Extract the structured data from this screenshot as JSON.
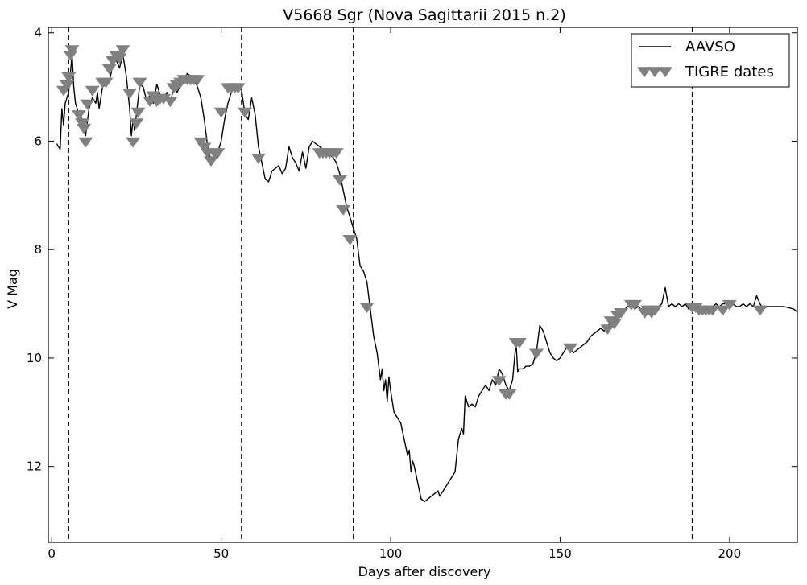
{
  "chart_data": {
    "type": "line",
    "title": "V5668 Sgr (Nova Sagittarii 2015 n.2)",
    "xlabel": "Days after discovery",
    "ylabel": "V Mag",
    "xlim": [
      -1,
      220
    ],
    "ylim": [
      13.4,
      3.9
    ],
    "y_inverted": true,
    "x_ticks": [
      0,
      50,
      100,
      150,
      200
    ],
    "y_ticks": [
      4,
      6,
      8,
      10,
      12
    ],
    "grid": false,
    "legend_position": "top-right",
    "vertical_dashed_lines_x": [
      5,
      56,
      89,
      189
    ],
    "series": [
      {
        "name": "AAVSO",
        "kind": "line",
        "color": "#000000",
        "points": [
          [
            1.5,
            6.05
          ],
          [
            2.5,
            6.15
          ],
          [
            3,
            5.4
          ],
          [
            3.5,
            5.7
          ],
          [
            4,
            5.3
          ],
          [
            5,
            5.1
          ],
          [
            6,
            4.4
          ],
          [
            6.5,
            5.0
          ],
          [
            7,
            5.3
          ],
          [
            8,
            5.5
          ],
          [
            9,
            5.6
          ],
          [
            10,
            5.9
          ],
          [
            11,
            5.4
          ],
          [
            12,
            5.2
          ],
          [
            13,
            5.3
          ],
          [
            13.5,
            5.1
          ],
          [
            14,
            5.4
          ],
          [
            15,
            5.0
          ],
          [
            16,
            4.95
          ],
          [
            17,
            4.9
          ],
          [
            18,
            4.6
          ],
          [
            19,
            4.5
          ],
          [
            20,
            4.65
          ],
          [
            21,
            4.4
          ],
          [
            22,
            4.8
          ],
          [
            23,
            5.4
          ],
          [
            23.5,
            5.9
          ],
          [
            24,
            5.6
          ],
          [
            24.5,
            5.8
          ],
          [
            25,
            5.5
          ],
          [
            26,
            4.95
          ],
          [
            27,
            5.0
          ],
          [
            28,
            5.25
          ],
          [
            29,
            5.15
          ],
          [
            30,
            5.3
          ],
          [
            31,
            4.95
          ],
          [
            32,
            5.15
          ],
          [
            33,
            5.2
          ],
          [
            34,
            5.1
          ],
          [
            35,
            5.3
          ],
          [
            36,
            5.0
          ],
          [
            37,
            5.1
          ],
          [
            38,
            4.95
          ],
          [
            39,
            4.9
          ],
          [
            40,
            4.75
          ],
          [
            41,
            4.8
          ],
          [
            42,
            4.85
          ],
          [
            43,
            5.0
          ],
          [
            44,
            5.2
          ],
          [
            45,
            5.6
          ],
          [
            46,
            6.1
          ],
          [
            47,
            6.35
          ],
          [
            48,
            6.3
          ],
          [
            49,
            6.2
          ],
          [
            50,
            6.0
          ],
          [
            51,
            5.6
          ],
          [
            52,
            5.3
          ],
          [
            53,
            5.1
          ],
          [
            54,
            5.0
          ],
          [
            55,
            4.95
          ],
          [
            56,
            5.05
          ],
          [
            57,
            5.5
          ],
          [
            58,
            5.6
          ],
          [
            59,
            5.2
          ],
          [
            60,
            5.5
          ],
          [
            61,
            6.1
          ],
          [
            62,
            6.4
          ],
          [
            63,
            6.7
          ],
          [
            64,
            6.75
          ],
          [
            65,
            6.55
          ],
          [
            66,
            6.5
          ],
          [
            67,
            6.45
          ],
          [
            68,
            6.6
          ],
          [
            69,
            6.5
          ],
          [
            70,
            6.1
          ],
          [
            71,
            6.3
          ],
          [
            72,
            6.4
          ],
          [
            73,
            6.55
          ],
          [
            74,
            6.2
          ],
          [
            75,
            6.5
          ],
          [
            76,
            6.1
          ],
          [
            77,
            6.0
          ],
          [
            78,
            6.05
          ],
          [
            79,
            6.1
          ],
          [
            80,
            6.15
          ],
          [
            81,
            6.2
          ],
          [
            82,
            6.25
          ],
          [
            83,
            6.3
          ],
          [
            84,
            6.4
          ],
          [
            85,
            6.6
          ],
          [
            86,
            6.9
          ],
          [
            87,
            7.2
          ],
          [
            88,
            7.4
          ],
          [
            89,
            7.6
          ],
          [
            90,
            7.8
          ],
          [
            91,
            8.3
          ],
          [
            91.5,
            8.35
          ],
          [
            92,
            8.4
          ],
          [
            93,
            8.6
          ],
          [
            94,
            9.1
          ],
          [
            95,
            9.6
          ],
          [
            96,
            9.9
          ],
          [
            97,
            10.4
          ],
          [
            97.5,
            10.2
          ],
          [
            98,
            10.6
          ],
          [
            98.5,
            10.4
          ],
          [
            99,
            10.8
          ],
          [
            99.5,
            10.35
          ],
          [
            100,
            10.6
          ],
          [
            101,
            11.0
          ],
          [
            102,
            11.1
          ],
          [
            103,
            11.2
          ],
          [
            104,
            11.5
          ],
          [
            105,
            11.8
          ],
          [
            105.5,
            11.7
          ],
          [
            106,
            12.1
          ],
          [
            106.5,
            11.9
          ],
          [
            107,
            12.0
          ],
          [
            108,
            12.3
          ],
          [
            109,
            12.6
          ],
          [
            110,
            12.65
          ],
          [
            111,
            12.6
          ],
          [
            112,
            12.55
          ],
          [
            113,
            12.5
          ],
          [
            114,
            12.45
          ],
          [
            114.5,
            12.55
          ],
          [
            115,
            12.5
          ],
          [
            116,
            12.4
          ],
          [
            117,
            12.3
          ],
          [
            118,
            12.2
          ],
          [
            119,
            12.1
          ],
          [
            120,
            11.5
          ],
          [
            121,
            11.3
          ],
          [
            121.5,
            11.4
          ],
          [
            122,
            10.7
          ],
          [
            123,
            10.9
          ],
          [
            124,
            10.85
          ],
          [
            125,
            10.9
          ],
          [
            126,
            10.7
          ],
          [
            127,
            10.6
          ],
          [
            128,
            10.5
          ],
          [
            129,
            10.6
          ],
          [
            130,
            10.4
          ],
          [
            131,
            10.5
          ],
          [
            132,
            10.2
          ],
          [
            133,
            10.3
          ],
          [
            134,
            10.5
          ],
          [
            135,
            10.6
          ],
          [
            136,
            10.4
          ],
          [
            137,
            9.7
          ],
          [
            137.5,
            10.25
          ],
          [
            138,
            10.2
          ],
          [
            139,
            10.2
          ],
          [
            140,
            10.15
          ],
          [
            141,
            10.15
          ],
          [
            142,
            10.1
          ],
          [
            143,
            9.9
          ],
          [
            144,
            9.4
          ],
          [
            145,
            9.5
          ],
          [
            146,
            9.7
          ],
          [
            147,
            9.9
          ],
          [
            148,
            10.0
          ],
          [
            149,
            10.05
          ],
          [
            150,
            10.0
          ],
          [
            151,
            9.9
          ],
          [
            152,
            9.8
          ],
          [
            153,
            9.85
          ],
          [
            154,
            9.9
          ],
          [
            155,
            9.85
          ],
          [
            156,
            9.8
          ],
          [
            157,
            9.75
          ],
          [
            158,
            9.7
          ],
          [
            159,
            9.6
          ],
          [
            160,
            9.55
          ],
          [
            161,
            9.5
          ],
          [
            162,
            9.45
          ],
          [
            163,
            9.5
          ],
          [
            164,
            9.4
          ],
          [
            165,
            9.35
          ],
          [
            166,
            9.3
          ],
          [
            167,
            9.2
          ],
          [
            168,
            9.15
          ],
          [
            169,
            9.1
          ],
          [
            170,
            9.05
          ],
          [
            171,
            9.0
          ],
          [
            172,
            9.1
          ],
          [
            173,
            9.05
          ],
          [
            174,
            9.1
          ],
          [
            175,
            9.05
          ],
          [
            176,
            9.1
          ],
          [
            177,
            9.05
          ],
          [
            178,
            9.1
          ],
          [
            179,
            9.05
          ],
          [
            180,
            9.0
          ],
          [
            181,
            8.7
          ],
          [
            182,
            9.05
          ],
          [
            183,
            9.0
          ],
          [
            184,
            9.05
          ],
          [
            185,
            9.0
          ],
          [
            186,
            9.05
          ],
          [
            187,
            9.0
          ],
          [
            188,
            9.1
          ],
          [
            189,
            9.05
          ],
          [
            190,
            9.1
          ],
          [
            191,
            9.05
          ],
          [
            192,
            9.1
          ],
          [
            193,
            9.05
          ],
          [
            194,
            9.1
          ],
          [
            195,
            9.05
          ],
          [
            196,
            9.0
          ],
          [
            197,
            9.05
          ],
          [
            198,
            9.0
          ],
          [
            199,
            9.0
          ],
          [
            200,
            9.05
          ],
          [
            201,
            9.0
          ],
          [
            202,
            9.05
          ],
          [
            203,
            9.05
          ],
          [
            204,
            9.0
          ],
          [
            205,
            9.05
          ],
          [
            206,
            9.0
          ],
          [
            207,
            9.05
          ],
          [
            208,
            8.85
          ],
          [
            209,
            9.0
          ],
          [
            210,
            9.1
          ],
          [
            211,
            9.05
          ],
          [
            212,
            9.05
          ],
          [
            214,
            9.05
          ],
          [
            216,
            9.05
          ],
          [
            218,
            9.08
          ],
          [
            219,
            9.1
          ],
          [
            220,
            9.15
          ]
        ]
      },
      {
        "name": "TIGRE dates",
        "kind": "markers",
        "marker": "triangle-down",
        "color": "#808080",
        "points": [
          [
            3.5,
            5.05
          ],
          [
            4.5,
            4.95
          ],
          [
            5,
            4.8
          ],
          [
            5.5,
            4.4
          ],
          [
            6,
            4.3
          ],
          [
            8,
            5.5
          ],
          [
            9,
            5.65
          ],
          [
            9.5,
            5.75
          ],
          [
            10,
            6.0
          ],
          [
            10.5,
            5.3
          ],
          [
            12,
            5.05
          ],
          [
            15,
            4.9
          ],
          [
            16,
            4.9
          ],
          [
            17,
            4.65
          ],
          [
            18,
            4.5
          ],
          [
            19,
            4.4
          ],
          [
            20,
            4.45
          ],
          [
            21,
            4.3
          ],
          [
            23,
            5.1
          ],
          [
            24,
            6.0
          ],
          [
            25,
            5.65
          ],
          [
            25.5,
            5.45
          ],
          [
            26,
            4.9
          ],
          [
            29,
            5.25
          ],
          [
            30,
            5.15
          ],
          [
            31,
            5.25
          ],
          [
            32,
            5.2
          ],
          [
            33,
            5.2
          ],
          [
            35,
            5.25
          ],
          [
            36,
            5.0
          ],
          [
            37,
            4.95
          ],
          [
            38,
            4.9
          ],
          [
            39,
            4.85
          ],
          [
            40,
            4.85
          ],
          [
            41,
            4.85
          ],
          [
            42,
            4.85
          ],
          [
            43,
            4.85
          ],
          [
            44,
            6.0
          ],
          [
            45,
            6.1
          ],
          [
            46,
            6.2
          ],
          [
            47,
            6.35
          ],
          [
            48,
            6.2
          ],
          [
            49,
            6.2
          ],
          [
            50,
            5.45
          ],
          [
            52,
            5.0
          ],
          [
            53,
            5.0
          ],
          [
            54,
            5.0
          ],
          [
            55,
            5.0
          ],
          [
            57,
            5.45
          ],
          [
            61,
            6.3
          ],
          [
            79,
            6.2
          ],
          [
            80,
            6.2
          ],
          [
            81,
            6.2
          ],
          [
            82,
            6.2
          ],
          [
            83,
            6.2
          ],
          [
            84,
            6.2
          ],
          [
            85,
            6.7
          ],
          [
            86,
            7.25
          ],
          [
            88,
            7.8
          ],
          [
            93,
            9.05
          ],
          [
            132,
            10.4
          ],
          [
            134,
            10.65
          ],
          [
            135,
            10.65
          ],
          [
            137,
            9.7
          ],
          [
            138,
            9.7
          ],
          [
            143,
            9.9
          ],
          [
            153,
            9.8
          ],
          [
            164,
            9.45
          ],
          [
            165,
            9.3
          ],
          [
            166,
            9.35
          ],
          [
            167,
            9.2
          ],
          [
            168,
            9.15
          ],
          [
            171,
            9.0
          ],
          [
            172,
            9.0
          ],
          [
            175,
            9.15
          ],
          [
            176,
            9.1
          ],
          [
            177,
            9.15
          ],
          [
            178,
            9.1
          ],
          [
            189,
            9.05
          ],
          [
            190,
            9.05
          ],
          [
            191,
            9.1
          ],
          [
            192,
            9.1
          ],
          [
            193,
            9.1
          ],
          [
            194,
            9.1
          ],
          [
            195,
            9.1
          ],
          [
            198,
            9.1
          ],
          [
            200,
            9.0
          ],
          [
            209,
            9.1
          ]
        ]
      }
    ]
  }
}
